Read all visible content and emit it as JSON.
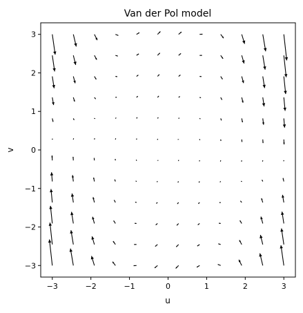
{
  "chart_data": {
    "type": "quiver",
    "title": "Van der Pol model",
    "xlabel": "u",
    "ylabel": "v",
    "xlim": [
      -3.3,
      3.3
    ],
    "ylim": [
      -3.3,
      3.3
    ],
    "x_ticks": [
      -3,
      -2,
      -1,
      0,
      1,
      2,
      3
    ],
    "y_ticks": [
      -3,
      -2,
      -1,
      0,
      1,
      2,
      3
    ],
    "x_tick_labels": [
      "−3",
      "−2",
      "−1",
      "0",
      "1",
      "2",
      "3"
    ],
    "y_tick_labels": [
      "−3",
      "−2",
      "−1",
      "0",
      "1",
      "2",
      "3"
    ],
    "grid": false,
    "field": {
      "u_min": -3,
      "u_max": 3,
      "v_min": -3,
      "v_max": 3,
      "n": 12,
      "du": "v",
      "dv": "(1 - u^2) * v - u"
    },
    "arrow_color": "#000000"
  }
}
